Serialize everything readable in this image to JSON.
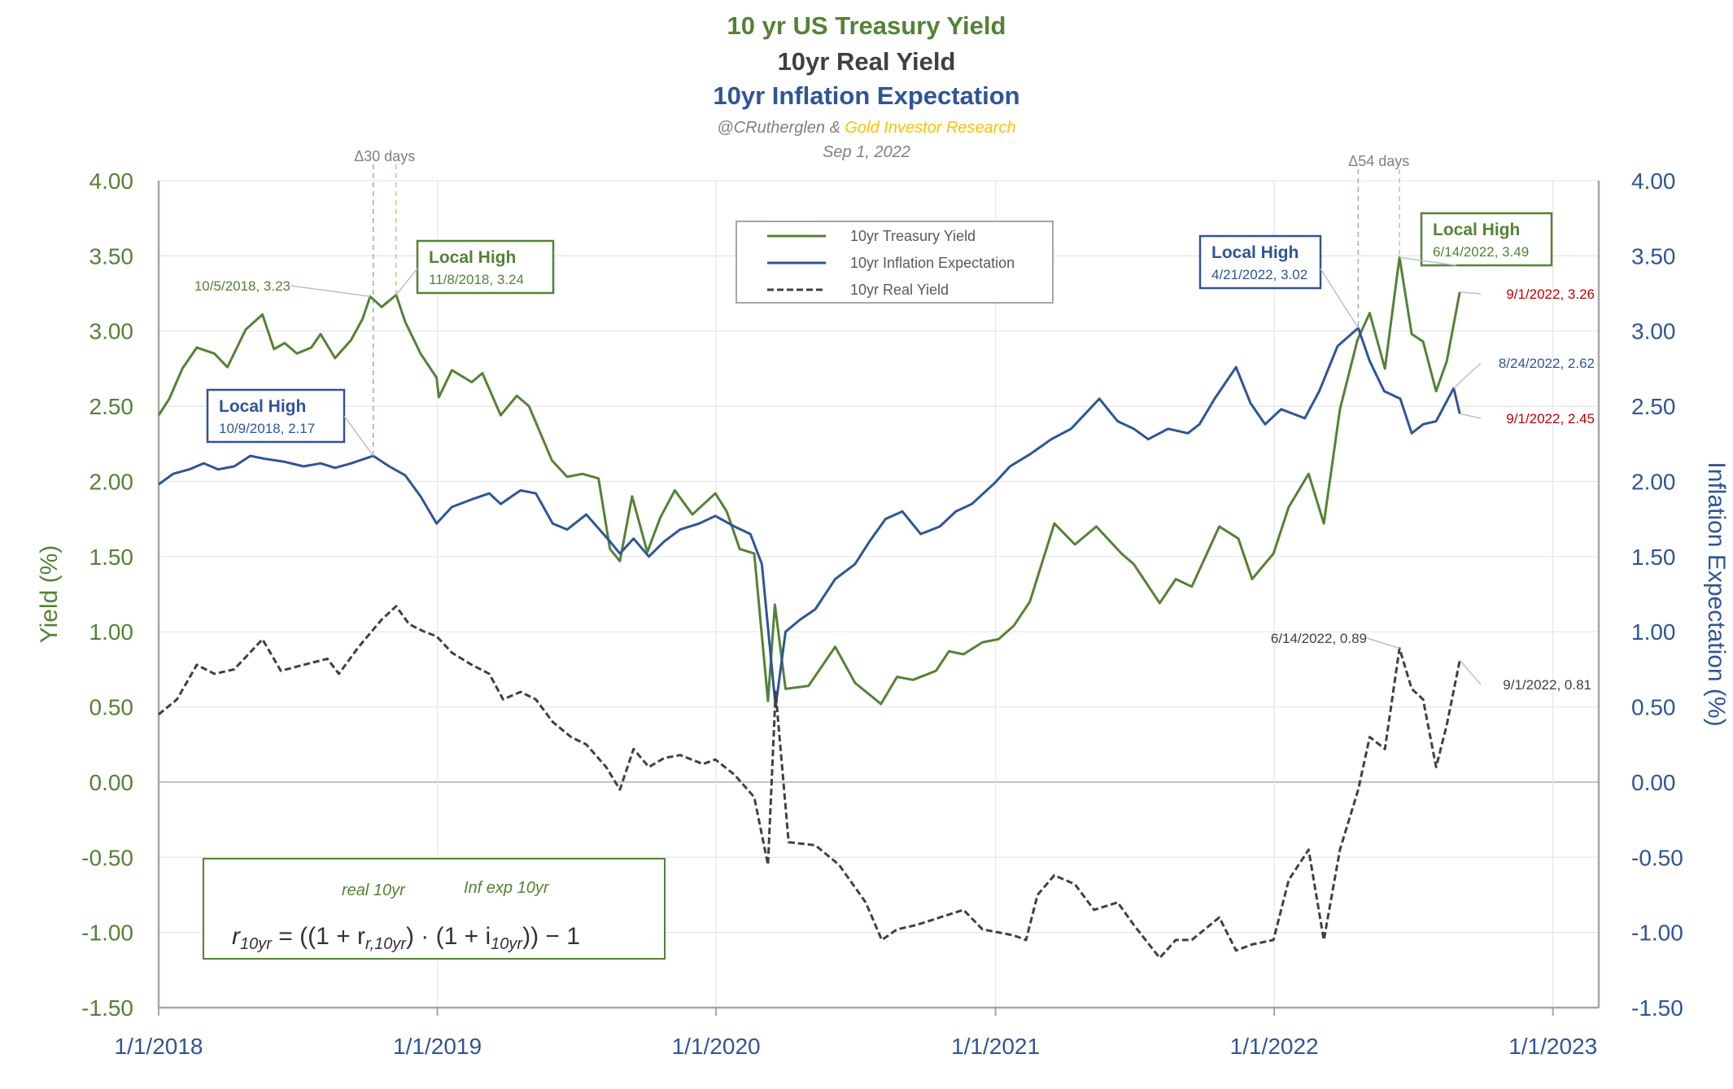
{
  "titles": {
    "main": "10 yr US Treasury Yield",
    "real": "10yr Real Yield",
    "inflation": "10yr Inflation Expectation",
    "credit_prefix": "@CRutherglen & ",
    "credit_brand": "Gold Investor Research",
    "date": "Sep 1, 2022"
  },
  "colors": {
    "treasury": "#548235",
    "inflation": "#2F5597",
    "real": "#404040",
    "red_label": "#C00000",
    "brand": "#FFC000",
    "grid": "#E6E6E6"
  },
  "chart_data": {
    "type": "line",
    "x_axis": {
      "ticks": [
        "1/1/2018",
        "1/1/2019",
        "1/1/2020",
        "1/1/2021",
        "1/1/2022",
        "1/1/2023"
      ]
    },
    "y_left": {
      "label": "Yield (%)",
      "range": [
        -1.5,
        4.0
      ],
      "ticks": [
        "4.00",
        "3.50",
        "3.00",
        "2.50",
        "2.00",
        "1.50",
        "1.00",
        "0.50",
        "0.00",
        "-0.50",
        "-1.00",
        "-1.50"
      ]
    },
    "y_right": {
      "label": "Inflation Expectation (%)",
      "range": [
        -1.5,
        4.0
      ],
      "ticks": [
        "4.00",
        "3.50",
        "3.00",
        "2.50",
        "2.00",
        "1.50",
        "1.00",
        "0.50",
        "0.00",
        "-0.50",
        "-1.00",
        "-1.50"
      ]
    },
    "grid": true,
    "legend_position": "top-center",
    "series": [
      {
        "name": "10yr Treasury Yield",
        "color": "#548235",
        "dash": "solid",
        "points": [
          [
            "2018-01-01",
            2.44
          ],
          [
            "2018-01-15",
            2.55
          ],
          [
            "2018-02-01",
            2.75
          ],
          [
            "2018-02-20",
            2.89
          ],
          [
            "2018-03-15",
            2.85
          ],
          [
            "2018-04-01",
            2.76
          ],
          [
            "2018-04-25",
            3.01
          ],
          [
            "2018-05-17",
            3.11
          ],
          [
            "2018-06-01",
            2.88
          ],
          [
            "2018-06-15",
            2.92
          ],
          [
            "2018-07-01",
            2.85
          ],
          [
            "2018-07-20",
            2.89
          ],
          [
            "2018-08-01",
            2.98
          ],
          [
            "2018-08-20",
            2.82
          ],
          [
            "2018-09-10",
            2.94
          ],
          [
            "2018-09-25",
            3.08
          ],
          [
            "2018-10-05",
            3.23
          ],
          [
            "2018-10-20",
            3.16
          ],
          [
            "2018-11-08",
            3.24
          ],
          [
            "2018-11-20",
            3.06
          ],
          [
            "2018-12-10",
            2.85
          ],
          [
            "2018-12-31",
            2.69
          ],
          [
            "2019-01-03",
            2.56
          ],
          [
            "2019-01-20",
            2.74
          ],
          [
            "2019-02-15",
            2.66
          ],
          [
            "2019-03-01",
            2.72
          ],
          [
            "2019-03-25",
            2.44
          ],
          [
            "2019-04-15",
            2.57
          ],
          [
            "2019-05-01",
            2.5
          ],
          [
            "2019-05-31",
            2.14
          ],
          [
            "2019-06-20",
            2.03
          ],
          [
            "2019-07-10",
            2.05
          ],
          [
            "2019-07-31",
            2.02
          ],
          [
            "2019-08-15",
            1.55
          ],
          [
            "2019-08-28",
            1.47
          ],
          [
            "2019-09-13",
            1.9
          ],
          [
            "2019-10-03",
            1.53
          ],
          [
            "2019-10-20",
            1.76
          ],
          [
            "2019-11-08",
            1.94
          ],
          [
            "2019-12-01",
            1.78
          ],
          [
            "2019-12-31",
            1.92
          ],
          [
            "2020-01-15",
            1.8
          ],
          [
            "2020-02-01",
            1.55
          ],
          [
            "2020-02-20",
            1.52
          ],
          [
            "2020-03-09",
            0.54
          ],
          [
            "2020-03-18",
            1.18
          ],
          [
            "2020-04-01",
            0.62
          ],
          [
            "2020-05-01",
            0.64
          ],
          [
            "2020-06-05",
            0.9
          ],
          [
            "2020-07-01",
            0.66
          ],
          [
            "2020-08-04",
            0.52
          ],
          [
            "2020-08-25",
            0.7
          ],
          [
            "2020-09-15",
            0.68
          ],
          [
            "2020-10-15",
            0.74
          ],
          [
            "2020-11-01",
            0.87
          ],
          [
            "2020-11-20",
            0.85
          ],
          [
            "2020-12-15",
            0.93
          ],
          [
            "2021-01-05",
            0.95
          ],
          [
            "2021-01-25",
            1.04
          ],
          [
            "2021-02-15",
            1.2
          ],
          [
            "2021-03-19",
            1.72
          ],
          [
            "2021-04-15",
            1.58
          ],
          [
            "2021-05-13",
            1.7
          ],
          [
            "2021-06-15",
            1.52
          ],
          [
            "2021-07-01",
            1.45
          ],
          [
            "2021-08-04",
            1.19
          ],
          [
            "2021-08-25",
            1.35
          ],
          [
            "2021-09-15",
            1.3
          ],
          [
            "2021-10-21",
            1.7
          ],
          [
            "2021-11-15",
            1.62
          ],
          [
            "2021-12-03",
            1.35
          ],
          [
            "2021-12-31",
            1.52
          ],
          [
            "2022-01-20",
            1.83
          ],
          [
            "2022-02-15",
            2.05
          ],
          [
            "2022-03-07",
            1.72
          ],
          [
            "2022-03-28",
            2.48
          ],
          [
            "2022-04-20",
            2.94
          ],
          [
            "2022-05-06",
            3.12
          ],
          [
            "2022-05-26",
            2.75
          ],
          [
            "2022-06-14",
            3.49
          ],
          [
            "2022-06-30",
            2.98
          ],
          [
            "2022-07-15",
            2.93
          ],
          [
            "2022-08-01",
            2.6
          ],
          [
            "2022-08-15",
            2.8
          ],
          [
            "2022-09-01",
            3.26
          ]
        ]
      },
      {
        "name": "10yr Inflation Expectation",
        "color": "#2F5597",
        "dash": "solid",
        "points": [
          [
            "2018-01-01",
            1.98
          ],
          [
            "2018-01-20",
            2.05
          ],
          [
            "2018-02-10",
            2.08
          ],
          [
            "2018-03-01",
            2.12
          ],
          [
            "2018-03-20",
            2.08
          ],
          [
            "2018-04-10",
            2.1
          ],
          [
            "2018-05-01",
            2.17
          ],
          [
            "2018-05-20",
            2.15
          ],
          [
            "2018-06-15",
            2.13
          ],
          [
            "2018-07-10",
            2.1
          ],
          [
            "2018-08-01",
            2.12
          ],
          [
            "2018-08-20",
            2.09
          ],
          [
            "2018-09-10",
            2.12
          ],
          [
            "2018-10-09",
            2.17
          ],
          [
            "2018-10-30",
            2.1
          ],
          [
            "2018-11-20",
            2.04
          ],
          [
            "2018-12-10",
            1.9
          ],
          [
            "2018-12-31",
            1.72
          ],
          [
            "2019-01-20",
            1.83
          ],
          [
            "2019-02-15",
            1.88
          ],
          [
            "2019-03-10",
            1.92
          ],
          [
            "2019-03-25",
            1.85
          ],
          [
            "2019-04-20",
            1.94
          ],
          [
            "2019-05-10",
            1.92
          ],
          [
            "2019-06-01",
            1.72
          ],
          [
            "2019-06-20",
            1.68
          ],
          [
            "2019-07-15",
            1.78
          ],
          [
            "2019-08-15",
            1.6
          ],
          [
            "2019-08-28",
            1.52
          ],
          [
            "2019-09-15",
            1.62
          ],
          [
            "2019-10-05",
            1.5
          ],
          [
            "2019-10-25",
            1.6
          ],
          [
            "2019-11-15",
            1.68
          ],
          [
            "2019-12-10",
            1.72
          ],
          [
            "2019-12-31",
            1.77
          ],
          [
            "2020-01-25",
            1.7
          ],
          [
            "2020-02-15",
            1.65
          ],
          [
            "2020-03-01",
            1.45
          ],
          [
            "2020-03-19",
            0.5
          ],
          [
            "2020-04-01",
            1.0
          ],
          [
            "2020-04-20",
            1.08
          ],
          [
            "2020-05-10",
            1.15
          ],
          [
            "2020-06-05",
            1.35
          ],
          [
            "2020-07-01",
            1.45
          ],
          [
            "2020-07-20",
            1.6
          ],
          [
            "2020-08-10",
            1.75
          ],
          [
            "2020-09-01",
            1.8
          ],
          [
            "2020-09-25",
            1.65
          ],
          [
            "2020-10-20",
            1.7
          ],
          [
            "2020-11-10",
            1.8
          ],
          [
            "2020-12-01",
            1.85
          ],
          [
            "2020-12-31",
            1.99
          ],
          [
            "2021-01-20",
            2.1
          ],
          [
            "2021-02-15",
            2.18
          ],
          [
            "2021-03-15",
            2.28
          ],
          [
            "2021-04-10",
            2.35
          ],
          [
            "2021-05-17",
            2.55
          ],
          [
            "2021-06-10",
            2.4
          ],
          [
            "2021-07-01",
            2.35
          ],
          [
            "2021-07-20",
            2.28
          ],
          [
            "2021-08-15",
            2.35
          ],
          [
            "2021-09-10",
            2.32
          ],
          [
            "2021-09-25",
            2.38
          ],
          [
            "2021-10-15",
            2.55
          ],
          [
            "2021-11-12",
            2.76
          ],
          [
            "2021-12-01",
            2.52
          ],
          [
            "2021-12-20",
            2.38
          ],
          [
            "2022-01-10",
            2.48
          ],
          [
            "2022-02-10",
            2.42
          ],
          [
            "2022-03-01",
            2.6
          ],
          [
            "2022-03-25",
            2.9
          ],
          [
            "2022-04-21",
            3.02
          ],
          [
            "2022-05-06",
            2.8
          ],
          [
            "2022-05-25",
            2.6
          ],
          [
            "2022-06-15",
            2.55
          ],
          [
            "2022-06-30",
            2.32
          ],
          [
            "2022-07-15",
            2.38
          ],
          [
            "2022-08-01",
            2.4
          ],
          [
            "2022-08-24",
            2.62
          ],
          [
            "2022-09-01",
            2.45
          ]
        ]
      },
      {
        "name": "10yr Real Yield",
        "color": "#404040",
        "dash": "dashed",
        "points": [
          [
            "2018-01-01",
            0.45
          ],
          [
            "2018-01-25",
            0.55
          ],
          [
            "2018-02-20",
            0.78
          ],
          [
            "2018-03-15",
            0.72
          ],
          [
            "2018-04-10",
            0.75
          ],
          [
            "2018-05-17",
            0.95
          ],
          [
            "2018-06-10",
            0.74
          ],
          [
            "2018-07-10",
            0.78
          ],
          [
            "2018-08-10",
            0.82
          ],
          [
            "2018-08-25",
            0.72
          ],
          [
            "2018-09-20",
            0.9
          ],
          [
            "2018-10-20",
            1.08
          ],
          [
            "2018-11-08",
            1.17
          ],
          [
            "2018-11-25",
            1.05
          ],
          [
            "2018-12-15",
            1.0
          ],
          [
            "2018-12-31",
            0.97
          ],
          [
            "2019-01-20",
            0.86
          ],
          [
            "2019-02-15",
            0.78
          ],
          [
            "2019-03-10",
            0.72
          ],
          [
            "2019-03-28",
            0.55
          ],
          [
            "2019-04-20",
            0.6
          ],
          [
            "2019-05-10",
            0.55
          ],
          [
            "2019-06-01",
            0.4
          ],
          [
            "2019-06-25",
            0.3
          ],
          [
            "2019-07-15",
            0.25
          ],
          [
            "2019-08-10",
            0.1
          ],
          [
            "2019-08-28",
            -0.05
          ],
          [
            "2019-09-15",
            0.22
          ],
          [
            "2019-10-05",
            0.1
          ],
          [
            "2019-10-25",
            0.16
          ],
          [
            "2019-11-15",
            0.18
          ],
          [
            "2019-12-15",
            0.12
          ],
          [
            "2019-12-31",
            0.15
          ],
          [
            "2020-01-25",
            0.05
          ],
          [
            "2020-02-20",
            -0.1
          ],
          [
            "2020-03-09",
            -0.55
          ],
          [
            "2020-03-19",
            0.6
          ],
          [
            "2020-04-05",
            -0.4
          ],
          [
            "2020-05-10",
            -0.42
          ],
          [
            "2020-06-10",
            -0.55
          ],
          [
            "2020-07-15",
            -0.8
          ],
          [
            "2020-08-05",
            -1.05
          ],
          [
            "2020-08-25",
            -0.98
          ],
          [
            "2020-09-20",
            -0.95
          ],
          [
            "2020-10-20",
            -0.9
          ],
          [
            "2020-11-20",
            -0.85
          ],
          [
            "2020-12-15",
            -0.98
          ],
          [
            "2021-01-05",
            -1.0
          ],
          [
            "2021-01-25",
            -1.02
          ],
          [
            "2021-02-10",
            -1.05
          ],
          [
            "2021-02-25",
            -0.75
          ],
          [
            "2021-03-19",
            -0.62
          ],
          [
            "2021-04-15",
            -0.68
          ],
          [
            "2021-05-10",
            -0.85
          ],
          [
            "2021-06-10",
            -0.8
          ],
          [
            "2021-07-01",
            -0.95
          ],
          [
            "2021-08-04",
            -1.17
          ],
          [
            "2021-08-25",
            -1.05
          ],
          [
            "2021-09-15",
            -1.05
          ],
          [
            "2021-10-21",
            -0.9
          ],
          [
            "2021-11-12",
            -1.12
          ],
          [
            "2021-12-03",
            -1.08
          ],
          [
            "2021-12-31",
            -1.05
          ],
          [
            "2022-01-20",
            -0.65
          ],
          [
            "2022-02-15",
            -0.45
          ],
          [
            "2022-03-07",
            -1.05
          ],
          [
            "2022-03-28",
            -0.45
          ],
          [
            "2022-04-21",
            -0.05
          ],
          [
            "2022-05-06",
            0.3
          ],
          [
            "2022-05-26",
            0.22
          ],
          [
            "2022-06-14",
            0.89
          ],
          [
            "2022-06-30",
            0.62
          ],
          [
            "2022-07-15",
            0.55
          ],
          [
            "2022-08-01",
            0.1
          ],
          [
            "2022-08-15",
            0.38
          ],
          [
            "2022-09-01",
            0.81
          ]
        ]
      }
    ],
    "annotations": {
      "delta_2018": "Δ30 days",
      "delta_2022": "Δ54 days",
      "lh_treasury_2018_title": "Local High",
      "lh_treasury_2018_text": "11/8/2018, 3.24",
      "treasury_2018_point": "10/5/2018, 3.23",
      "lh_infl_2018_title": "Local High",
      "lh_infl_2018_text": "10/9/2018, 2.17",
      "lh_infl_2022_title": "Local High",
      "lh_infl_2022_text": "4/21/2022, 3.02",
      "lh_treasury_2022_title": "Local High",
      "lh_treasury_2022_text": "6/14/2022, 3.49",
      "end_treasury": "9/1/2022, 3.26",
      "end_infl_peak": "8/24/2022, 2.62",
      "end_infl": "9/1/2022, 2.45",
      "real_peak": "6/14/2022, 0.89",
      "real_end": "9/1/2022, 0.81"
    },
    "formula": {
      "label_real": "real 10yr",
      "label_inf": "Inf exp 10yr",
      "lhs": "r",
      "lhs_sub": "10yr",
      "eq": " = ((1 + r",
      "sub1": "r,10yr",
      "mid": ") · (1 + i",
      "sub2": "10yr",
      "end": ")) − 1"
    }
  }
}
